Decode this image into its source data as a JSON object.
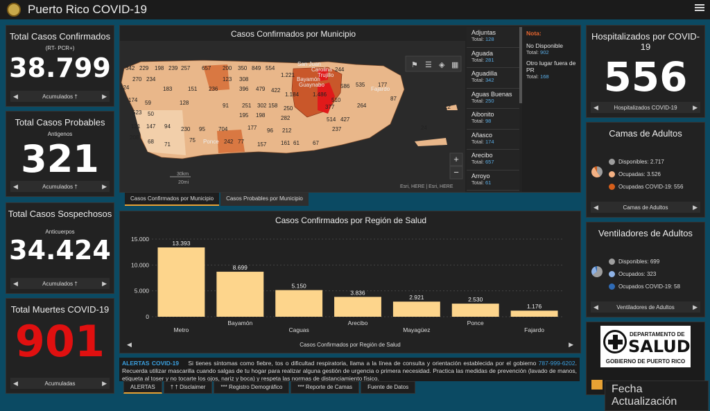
{
  "app": {
    "title": "Puerto Rico COVID-19"
  },
  "cards": {
    "confirmados": {
      "title": "Total Casos Confirmados",
      "sub": "(RT- PCR+)",
      "value": "38.799",
      "nav": "Acumulados †"
    },
    "probables": {
      "title": "Total Casos Probables",
      "sub": "Antigenos",
      "value": "321",
      "nav": "Acumulados †"
    },
    "sospechosos": {
      "title": "Total Casos Sospechosos",
      "sub": "Anticuerpos",
      "value": "34.424",
      "nav": "Acumulados †"
    },
    "muertes": {
      "title": "Total Muertes COVID-19",
      "value": "901",
      "nav": "Acumuladas"
    }
  },
  "map": {
    "title": "Casos Confirmados por Municipio",
    "attribution": "Esri, HERE | Esri, HERE",
    "scale_km": "30km",
    "scale_mi": "20mi",
    "zoom_in": "+",
    "zoom_out": "−",
    "labels": [
      "342",
      "229",
      "198",
      "239",
      "257",
      "657",
      "200",
      "350",
      "849",
      "554",
      "1.221",
      "San Juan",
      "Carolina",
      "244",
      "270",
      "234",
      "123",
      "308",
      "Bayamón",
      "Trujillo",
      "Guaynabo",
      "586",
      "535",
      "177",
      "124",
      "183",
      "151",
      "236",
      "396",
      "479",
      "422",
      "1.184",
      "1.486",
      "510",
      "Fajardo",
      "87",
      "174",
      "59",
      "128",
      "91",
      "251",
      "302",
      "158",
      "250",
      "377",
      "264",
      "523",
      "50",
      "195",
      "198",
      "282",
      "514",
      "427",
      "121",
      "147",
      "94",
      "230",
      "95",
      "704",
      "177",
      "96",
      "212",
      "237",
      "208",
      "68",
      "71",
      "75",
      "Ponce",
      "242",
      "77",
      "157",
      "161",
      "61",
      "67",
      "24",
      "12"
    ]
  },
  "municipios": [
    {
      "name": "Adjuntas",
      "total_label": "Total:",
      "total": "128"
    },
    {
      "name": "Aguada",
      "total_label": "Total:",
      "total": "281"
    },
    {
      "name": "Aguadilla",
      "total_label": "Total:",
      "total": "342"
    },
    {
      "name": "Aguas Buenas",
      "total_label": "Total:",
      "total": "250"
    },
    {
      "name": "Aibonito",
      "total_label": "Total:",
      "total": "98"
    },
    {
      "name": "Añasco",
      "total_label": "Total:",
      "total": "174"
    },
    {
      "name": "Arecibo",
      "total_label": "Total:",
      "total": "657"
    },
    {
      "name": "Arroyo",
      "total_label": "Total:",
      "total": "61"
    }
  ],
  "note": {
    "label": "Nota:",
    "items": [
      {
        "name": "No Disponible",
        "total_label": "Total:",
        "total": "902"
      },
      {
        "name": "Otro lugar fuera de PR",
        "total_label": "Total:",
        "total": "168"
      }
    ]
  },
  "map_tabs": [
    "Casos Confirmados por Municipio",
    "Casos Probables por Municipio"
  ],
  "chart_data": {
    "type": "bar",
    "title": "Casos Confirmados por Región de Salud",
    "categories": [
      "Metro",
      "Bayamón",
      "Caguas",
      "Arecibo",
      "Mayagüez",
      "Ponce",
      "Fajardo"
    ],
    "values": [
      13393,
      8699,
      5150,
      3836,
      2921,
      2530,
      1176
    ],
    "value_labels": [
      "13.393",
      "8.699",
      "5.150",
      "3.836",
      "2.921",
      "2.530",
      "1.176"
    ],
    "yticks": [
      "0",
      "5.000",
      "10.000",
      "15.000"
    ],
    "ytick_values": [
      0,
      5000,
      10000,
      15000
    ],
    "ylim": [
      0,
      15000
    ],
    "xlabel": "",
    "ylabel": "",
    "grid": true,
    "bar_color": "#fdd58c",
    "nav": "Casos Confirmados por Región de Salud"
  },
  "hosp": {
    "title": "Hospitalizados por COVID-19",
    "value": "556",
    "nav": "Hospitalizados COVID-19"
  },
  "camas": {
    "title": "Camas de Adultos",
    "nav": "Camas de Adultos",
    "items": [
      {
        "label": "Disponibles:",
        "value": "2.717",
        "num": 2717,
        "color": "#9e9e9e"
      },
      {
        "label": "Ocupadas:",
        "value": "3.526",
        "num": 3526,
        "color": "#f4b183"
      },
      {
        "label": "Ocupadas COVID-19:",
        "value": "556",
        "num": 556,
        "color": "#d55e1a"
      }
    ]
  },
  "vent": {
    "title": "Ventiladores de Adultos",
    "nav": "Ventiladores de Adultos",
    "items": [
      {
        "label": "Disponibles:",
        "value": "699",
        "num": 699,
        "color": "#9e9e9e"
      },
      {
        "label": "Ocupados:",
        "value": "323",
        "num": 323,
        "color": "#8fb3e6"
      },
      {
        "label": "Ocupados COVID-19:",
        "value": "58",
        "num": 58,
        "color": "#2f6bb5"
      }
    ]
  },
  "alert": {
    "heading": "ALERTAS COVID-19",
    "text1": "Si tienes síntomas como fiebre, tos o dificultad respiratoria, llama a la línea de consulta y orientación establecida por el gobierno",
    "phone": "787-999-6202",
    "text2": ". Recuerda utilizar mascarilla cuando salgas de tu hogar para realizar alguna gestión de urgencia o primera necesidad. Practica las medidas de prevención (lavado de manos, etiqueta al toser y no tocarte los ojos, nariz y boca) y respeta las normas de distanciamiento físico."
  },
  "bottom_tabs": [
    "ALERTAS",
    "† † Disclaimer",
    "*** Registro Demográfico",
    "*** Reporte de Camas",
    "Fuente de Datos"
  ],
  "logo": {
    "line1": "DEPARTAMENTO DE",
    "line2": "SALUD",
    "line3": "GOBIERNO DE PUERTO RICO"
  },
  "update": {
    "label": "Fecha Actualización"
  }
}
